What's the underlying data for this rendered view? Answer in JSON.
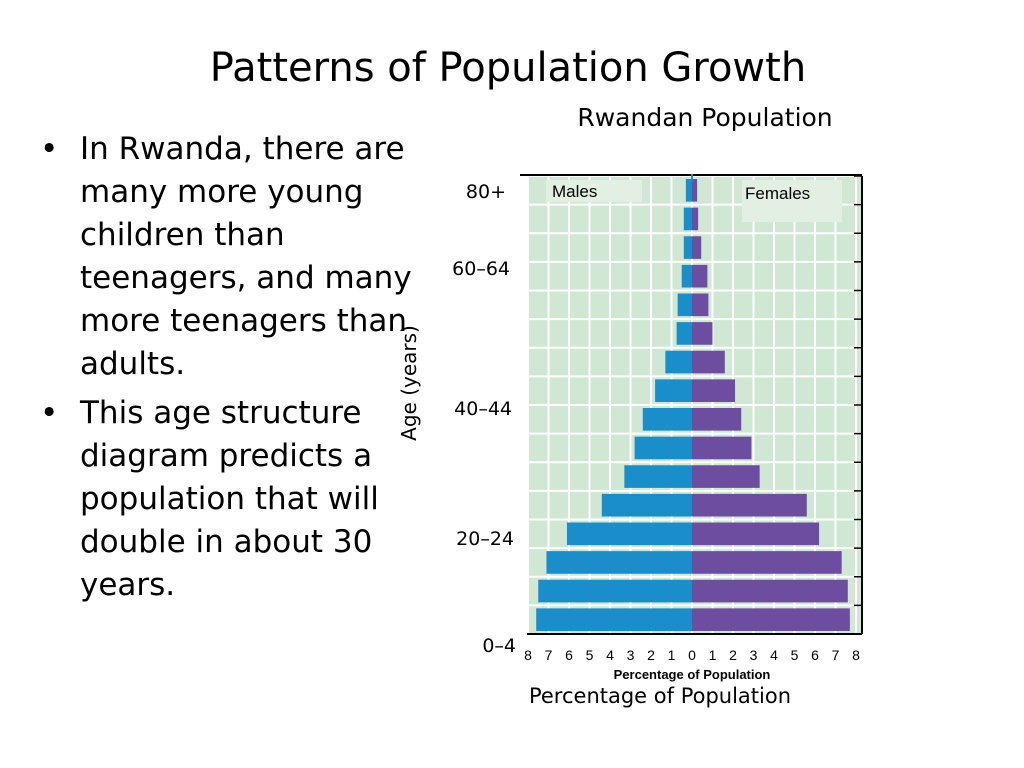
{
  "slide": {
    "title": "Patterns of Population Growth",
    "bullets": [
      "In Rwanda, there are many more young children than teenagers, and many more teenagers than adults.",
      "This age structure diagram predicts a population that will double in about 30 years."
    ]
  },
  "chart_data": {
    "type": "bar",
    "orientation": "horizontal",
    "title": "Rwandan Population",
    "xlabel": "Percentage of Population",
    "inner_xlabel": "Percentage of Population",
    "ylabel": "Age (years)",
    "y_tick_labels": [
      "80+",
      "60–64",
      "40–44",
      "20–24",
      "0–4"
    ],
    "xlim": [
      -8,
      8
    ],
    "x_ticks": [
      "8",
      "7",
      "6",
      "5",
      "4",
      "3",
      "2",
      "1",
      "0",
      "1",
      "2",
      "3",
      "4",
      "5",
      "6",
      "7",
      "8"
    ],
    "grid": true,
    "colors": {
      "males": "#1a8ecb",
      "females": "#6d4da0",
      "background": "#cfe7d3",
      "grid": "#ffffff",
      "legend_box": "#e4efe4"
    },
    "series": [
      {
        "name": "Males",
        "values": [
          -7.6,
          -7.5,
          -7.1,
          -6.1,
          -4.4,
          -3.3,
          -2.8,
          -2.4,
          -1.8,
          -1.3,
          -0.75,
          -0.7,
          -0.5,
          -0.4,
          -0.4,
          -0.3
        ]
      },
      {
        "name": "Females",
        "values": [
          7.7,
          7.6,
          7.3,
          6.2,
          5.6,
          3.3,
          2.9,
          2.4,
          2.1,
          1.6,
          1.0,
          0.8,
          0.75,
          0.45,
          0.3,
          0.25
        ]
      }
    ]
  }
}
